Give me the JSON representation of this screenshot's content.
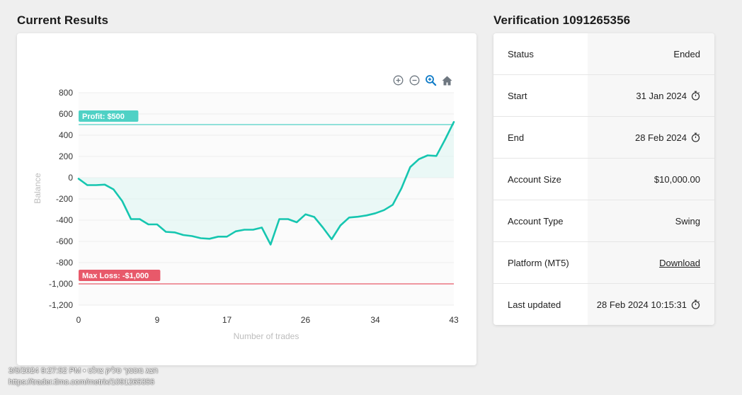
{
  "results": {
    "title": "Current Results",
    "toolbar": [
      "zoom-in-icon",
      "zoom-out-icon",
      "magnifier-icon",
      "home-icon"
    ]
  },
  "chart_data": {
    "type": "line",
    "xlabel": "Number of trades",
    "ylabel": "Balance",
    "ylim": [
      -1200,
      800
    ],
    "xlim": [
      0,
      43
    ],
    "x_ticks": [
      "0",
      "9",
      "17",
      "26",
      "34",
      "43"
    ],
    "y_ticks": [
      "800",
      "600",
      "400",
      "200",
      "0",
      "-200",
      "-400",
      "-600",
      "-800",
      "-1,000",
      "-1,200"
    ],
    "grid": true,
    "line_color": "#16c6b0",
    "series": [
      {
        "x": [
          0,
          1,
          2,
          3,
          4,
          5,
          6,
          7,
          8,
          9,
          10,
          11,
          12,
          13,
          14,
          15,
          16,
          17,
          18,
          19,
          20,
          21,
          22,
          23,
          24,
          25,
          26,
          27,
          28,
          29,
          30,
          31,
          32,
          33,
          34,
          35,
          36,
          37,
          38,
          39,
          40,
          41,
          42,
          43
        ],
        "values": [
          -10,
          -70,
          -70,
          -65,
          -110,
          -220,
          -390,
          -390,
          -440,
          -440,
          -510,
          -515,
          -540,
          -550,
          -570,
          -575,
          -555,
          -555,
          -505,
          -490,
          -490,
          -470,
          -630,
          -390,
          -390,
          -420,
          -345,
          -370,
          -470,
          -580,
          -450,
          -375,
          -368,
          -355,
          -335,
          -305,
          -255,
          -100,
          100,
          175,
          210,
          205,
          360,
          525
        ]
      }
    ],
    "annotations": [
      {
        "label": "Profit: $500",
        "y": 500,
        "color": "#4fd1c5"
      },
      {
        "label": "Max Loss: -$1,000",
        "y": -1000,
        "color": "#e8596a"
      }
    ]
  },
  "verification": {
    "title": "Verification 1091265356",
    "rows": [
      {
        "label": "Status",
        "value": "Ended"
      },
      {
        "label": "Start",
        "value": "31 Jan 2024",
        "icon": "stopwatch-icon"
      },
      {
        "label": "End",
        "value": "28 Feb 2024",
        "icon": "stopwatch-icon"
      },
      {
        "label": "Account Size",
        "value": "$10,000.00"
      },
      {
        "label": "Account Type",
        "value": "Swing"
      },
      {
        "label": "Platform (MT5)",
        "value": "Download"
      },
      {
        "label": "Last updated",
        "value": "28 Feb 2024 10:15:31",
        "icon": "stopwatch-icon"
      }
    ]
  },
  "footer": {
    "date_line": "3/5/2024 9:27:52 PM • הצג מסמך סליק צולט",
    "url": "https://trader.tlmo.com/metrix/1091265356"
  }
}
